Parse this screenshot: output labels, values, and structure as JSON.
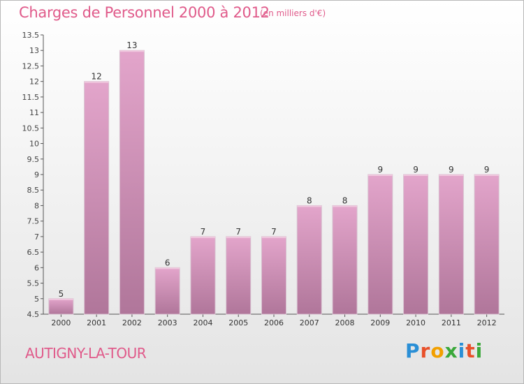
{
  "title": "Charges de Personnel 2000 à 2012",
  "subtitle": "(en milliers d'€)",
  "commune": "AUTIGNY-LA-TOUR",
  "logo": {
    "letters": [
      "P",
      "r",
      "o",
      "x",
      "i",
      "t",
      "i"
    ],
    "colors": [
      "#2a8fd6",
      "#e8502a",
      "#f2a000",
      "#3aa83a",
      "#2a8fd6",
      "#e8502a",
      "#3aa83a"
    ]
  },
  "colors": {
    "bar_top": "#e3a5cb",
    "bar_bottom": "#b0769a",
    "accent": "#e05a8a"
  },
  "chart_data": {
    "type": "bar",
    "categories": [
      "2000",
      "2001",
      "2002",
      "2003",
      "2004",
      "2005",
      "2006",
      "2007",
      "2008",
      "2009",
      "2010",
      "2011",
      "2012"
    ],
    "values": [
      5,
      12,
      13,
      6,
      7,
      7,
      7,
      8,
      8,
      9,
      9,
      9,
      9
    ],
    "ylim": [
      4.5,
      13.5
    ],
    "yticks": [
      "4.5",
      "5",
      "5.5",
      "6",
      "6.5",
      "7",
      "7.5",
      "8",
      "8.5",
      "9",
      "9.5",
      "10",
      "10.5",
      "11",
      "11.5",
      "12",
      "12.5",
      "13",
      "13.5"
    ],
    "grid": false,
    "legend": "none"
  }
}
